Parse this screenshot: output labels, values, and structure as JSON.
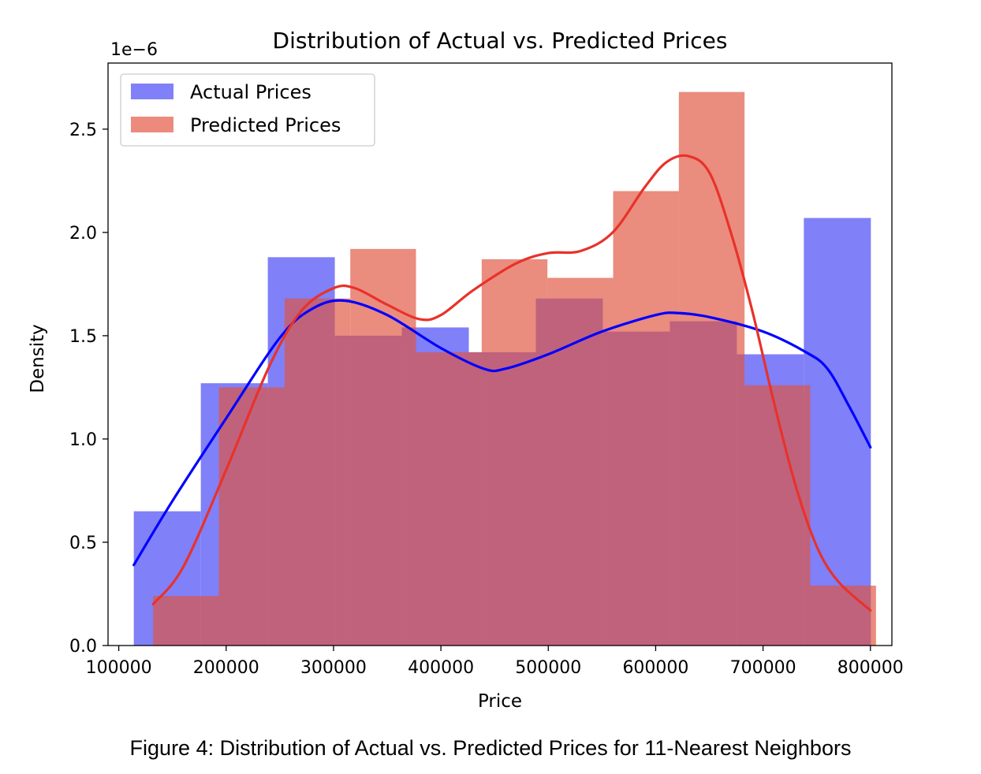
{
  "chart_data": {
    "type": "histogram",
    "title": "Distribution of Actual vs. Predicted Prices",
    "xlabel": "Price",
    "ylabel": "Density",
    "y_offset_label": "1e−6",
    "xlim": [
      90000,
      820000
    ],
    "ylim": [
      0,
      2.82
    ],
    "x_ticks": [
      100000,
      200000,
      300000,
      400000,
      500000,
      600000,
      700000,
      800000
    ],
    "x_tick_labels": [
      "100000",
      "200000",
      "300000",
      "400000",
      "500000",
      "600000",
      "700000",
      "800000"
    ],
    "y_ticks": [
      0,
      0.5,
      1.0,
      1.5,
      2.0,
      2.5
    ],
    "y_tick_labels": [
      "0.0",
      "0.5",
      "1.0",
      "1.5",
      "2.0",
      "2.5"
    ],
    "legend_position": "top-left",
    "grid": false,
    "series": [
      {
        "name": "Actual Prices",
        "color": "#0000ff",
        "fill_color": "#8080f8",
        "bins": [
          {
            "x0": 114000,
            "x1": 176400,
            "density": 0.65
          },
          {
            "x0": 176400,
            "x1": 238800,
            "density": 1.27
          },
          {
            "x0": 238800,
            "x1": 301200,
            "density": 1.88
          },
          {
            "x0": 301200,
            "x1": 363600,
            "density": 1.5
          },
          {
            "x0": 363600,
            "x1": 426000,
            "density": 1.54
          },
          {
            "x0": 426000,
            "x1": 488400,
            "density": 1.42
          },
          {
            "x0": 488400,
            "x1": 550800,
            "density": 1.68
          },
          {
            "x0": 550800,
            "x1": 613200,
            "density": 1.52
          },
          {
            "x0": 613200,
            "x1": 675600,
            "density": 1.57
          },
          {
            "x0": 675600,
            "x1": 738000,
            "density": 1.41
          },
          {
            "x0": 738000,
            "x1": 800400,
            "density": 2.07
          }
        ],
        "kde": [
          [
            114000,
            0.39
          ],
          [
            150000,
            0.7
          ],
          [
            200000,
            1.1
          ],
          [
            250000,
            1.49
          ],
          [
            280000,
            1.63
          ],
          [
            310000,
            1.67
          ],
          [
            350000,
            1.6
          ],
          [
            400000,
            1.44
          ],
          [
            440000,
            1.34
          ],
          [
            460000,
            1.34
          ],
          [
            500000,
            1.41
          ],
          [
            550000,
            1.52
          ],
          [
            600000,
            1.6
          ],
          [
            620000,
            1.61
          ],
          [
            650000,
            1.59
          ],
          [
            700000,
            1.52
          ],
          [
            740000,
            1.42
          ],
          [
            760000,
            1.34
          ],
          [
            780000,
            1.16
          ],
          [
            800000,
            0.96
          ]
        ]
      },
      {
        "name": "Predicted Prices",
        "color": "#e8322a",
        "fill_color": "#e0543f",
        "bins": [
          {
            "x0": 132000,
            "x1": 193200,
            "density": 0.24
          },
          {
            "x0": 193200,
            "x1": 254400,
            "density": 1.25
          },
          {
            "x0": 254400,
            "x1": 315600,
            "density": 1.68
          },
          {
            "x0": 315600,
            "x1": 376800,
            "density": 1.92
          },
          {
            "x0": 376800,
            "x1": 438000,
            "density": 1.42
          },
          {
            "x0": 438000,
            "x1": 499200,
            "density": 1.87
          },
          {
            "x0": 499200,
            "x1": 560400,
            "density": 1.78
          },
          {
            "x0": 560400,
            "x1": 621600,
            "density": 2.2
          },
          {
            "x0": 621600,
            "x1": 682800,
            "density": 2.68
          },
          {
            "x0": 682800,
            "x1": 744000,
            "density": 1.26
          },
          {
            "x0": 744000,
            "x1": 805200,
            "density": 0.29
          }
        ],
        "kde": [
          [
            132000,
            0.2
          ],
          [
            160000,
            0.38
          ],
          [
            200000,
            0.85
          ],
          [
            240000,
            1.35
          ],
          [
            270000,
            1.62
          ],
          [
            300000,
            1.73
          ],
          [
            320000,
            1.73
          ],
          [
            350000,
            1.65
          ],
          [
            380000,
            1.58
          ],
          [
            400000,
            1.6
          ],
          [
            430000,
            1.72
          ],
          [
            470000,
            1.85
          ],
          [
            500000,
            1.9
          ],
          [
            530000,
            1.91
          ],
          [
            560000,
            2.0
          ],
          [
            590000,
            2.22
          ],
          [
            610000,
            2.34
          ],
          [
            630000,
            2.37
          ],
          [
            650000,
            2.29
          ],
          [
            670000,
            2.0
          ],
          [
            690000,
            1.62
          ],
          [
            710000,
            1.18
          ],
          [
            730000,
            0.78
          ],
          [
            750000,
            0.48
          ],
          [
            770000,
            0.31
          ],
          [
            800000,
            0.17
          ]
        ]
      }
    ]
  },
  "caption": "Figure 4: Distribution of Actual vs. Predicted Prices for 11-Nearest Neighbors"
}
